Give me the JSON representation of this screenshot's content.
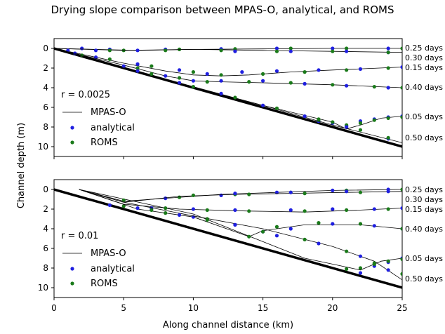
{
  "figure": {
    "title": "Drying slope comparison between MPAS-O, analytical, and ROMS",
    "xlabel": "Along channel distance (km)",
    "ylabel": "Channel depth (m)"
  },
  "legend": {
    "mpas": "MPAS-O",
    "analytical": "analytical",
    "roms": "ROMS"
  },
  "colors": {
    "analytical": "#1f1fe0",
    "roms": "#1a7a1a",
    "mpas": "#000000"
  },
  "chart_data": [
    {
      "type": "line",
      "panel": "top",
      "label": "r = 0.0025",
      "xlim": [
        0,
        25
      ],
      "ylim": [
        11,
        -1
      ],
      "yinvert": true,
      "xticks": [
        0,
        5,
        10,
        15,
        20,
        25
      ],
      "yticks": [
        0,
        2,
        4,
        6,
        8,
        10
      ],
      "bathymetry": [
        [
          0,
          0
        ],
        [
          25,
          10
        ]
      ],
      "series": [
        {
          "name": "0.05 days",
          "mpas": [
            [
              0,
              0
            ],
            [
              10,
              4
            ],
            [
              15,
              5.8
            ],
            [
              20,
              7.5
            ],
            [
              21,
              8.2
            ],
            [
              22,
              7.8
            ],
            [
              23.5,
              7.1
            ],
            [
              25,
              6.9
            ]
          ],
          "analytical": [
            [
              19,
              7.4
            ],
            [
              20,
              7.6
            ],
            [
              21,
              7.9
            ],
            [
              22,
              7.4
            ],
            [
              23,
              7.2
            ],
            [
              24,
              7.0
            ],
            [
              25,
              6.9
            ]
          ],
          "roms": [
            [
              19,
              7.3
            ],
            [
              20,
              7.5
            ],
            [
              21,
              7.8
            ],
            [
              22,
              7.6
            ],
            [
              23,
              7.3
            ],
            [
              24,
              7.1
            ],
            [
              25,
              7.0
            ]
          ]
        },
        {
          "name": "0.15 days",
          "mpas": [
            [
              0,
              0
            ],
            [
              2,
              0.6
            ],
            [
              5,
              1.5
            ],
            [
              8,
              2.3
            ],
            [
              10,
              2.7
            ],
            [
              12,
              2.8
            ],
            [
              14,
              2.7
            ],
            [
              17,
              2.4
            ],
            [
              20,
              2.2
            ],
            [
              25,
              1.9
            ]
          ],
          "analytical": [
            [
              1.5,
              0.5
            ],
            [
              3,
              0.9
            ],
            [
              6,
              1.6
            ],
            [
              9,
              2.2
            ],
            [
              11,
              2.6
            ],
            [
              13.5,
              2.4
            ],
            [
              16,
              2.3
            ],
            [
              19,
              2.2
            ],
            [
              22,
              2.1
            ],
            [
              25,
              1.9
            ]
          ],
          "roms": [
            [
              2,
              0.7
            ],
            [
              4,
              1.1
            ],
            [
              7,
              1.8
            ],
            [
              10,
              2.4
            ],
            [
              12,
              2.7
            ],
            [
              15,
              2.6
            ],
            [
              18,
              2.4
            ],
            [
              21,
              2.2
            ],
            [
              24,
              2.0
            ]
          ]
        },
        {
          "name": "0.25 days",
          "mpas": [
            [
              0,
              0
            ],
            [
              5,
              0.2
            ],
            [
              10,
              0.1
            ],
            [
              15,
              0.05
            ],
            [
              20,
              0
            ],
            [
              25,
              0
            ]
          ],
          "analytical": [
            [
              2,
              0
            ],
            [
              4,
              0.1
            ],
            [
              8,
              0.1
            ],
            [
              12,
              0.05
            ],
            [
              16,
              0
            ],
            [
              20,
              0
            ],
            [
              24,
              0
            ]
          ],
          "roms": [
            [
              5,
              0.2
            ],
            [
              9,
              0.1
            ],
            [
              13,
              0.05
            ],
            [
              17,
              0
            ],
            [
              21,
              0
            ],
            [
              25,
              0
            ]
          ]
        },
        {
          "name": "0.30 days",
          "mpas": [
            [
              0,
              0
            ],
            [
              3,
              0.1
            ],
            [
              6,
              0.2
            ],
            [
              10,
              0.1
            ],
            [
              15,
              0.2
            ],
            [
              20,
              0.3
            ],
            [
              25,
              0.4
            ]
          ],
          "analytical": [
            [
              1,
              0.2
            ],
            [
              3,
              0.2
            ],
            [
              6,
              0.2
            ],
            [
              13,
              0.3
            ],
            [
              17,
              0.3
            ],
            [
              21,
              0.3
            ],
            [
              24,
              0.4
            ]
          ],
          "roms": [
            [
              4,
              0.2
            ],
            [
              8,
              0.2
            ],
            [
              12,
              0.2
            ],
            [
              16,
              0.3
            ],
            [
              20,
              0.3
            ],
            [
              24,
              0.4
            ]
          ]
        },
        {
          "name": "0.40 days",
          "mpas": [
            [
              0,
              0
            ],
            [
              5,
              1.7
            ],
            [
              8,
              2.8
            ],
            [
              10,
              3.3
            ],
            [
              12,
              3.4
            ],
            [
              15,
              3.5
            ],
            [
              20,
              3.7
            ],
            [
              25,
              4.0
            ]
          ],
          "analytical": [
            [
              5,
              1.8
            ],
            [
              8,
              2.8
            ],
            [
              10,
              3.3
            ],
            [
              12,
              3.3
            ],
            [
              15,
              3.3
            ],
            [
              18,
              3.6
            ],
            [
              21,
              3.8
            ],
            [
              24,
              4.0
            ]
          ],
          "roms": [
            [
              6,
              2.0
            ],
            [
              9,
              3.0
            ],
            [
              11,
              3.4
            ],
            [
              14,
              3.4
            ],
            [
              17,
              3.5
            ],
            [
              20,
              3.7
            ],
            [
              23,
              3.9
            ],
            [
              25,
              4.0
            ]
          ]
        },
        {
          "name": "0.50 days",
          "mpas": [
            [
              0,
              0
            ],
            [
              5,
              2.0
            ],
            [
              10,
              3.9
            ],
            [
              15,
              5.8
            ],
            [
              20,
              7.8
            ],
            [
              25,
              9.6
            ]
          ],
          "analytical": [
            [
              6,
              2.3
            ],
            [
              9,
              3.5
            ],
            [
              12,
              4.6
            ],
            [
              15,
              5.8
            ],
            [
              18,
              6.9
            ],
            [
              21,
              8.0
            ],
            [
              24,
              9.2
            ]
          ],
          "roms": [
            [
              7,
              2.6
            ],
            [
              10,
              3.9
            ],
            [
              13,
              5.0
            ],
            [
              16,
              6.1
            ],
            [
              19,
              7.2
            ],
            [
              22,
              8.3
            ],
            [
              24,
              9.1
            ]
          ]
        }
      ]
    },
    {
      "type": "line",
      "panel": "bottom",
      "label": "r = 0.01",
      "xlim": [
        0,
        25
      ],
      "ylim": [
        11,
        -1
      ],
      "yinvert": true,
      "xticks": [
        0,
        5,
        10,
        15,
        20,
        25
      ],
      "yticks": [
        0,
        2,
        4,
        6,
        8,
        10
      ],
      "bathymetry": [
        [
          0,
          0
        ],
        [
          25,
          10
        ]
      ],
      "series": [
        {
          "name": "0.05 days",
          "mpas": [
            [
              1.8,
              0
            ],
            [
              10,
              2.5
            ],
            [
              18,
              7.0
            ],
            [
              22,
              8.2
            ],
            [
              23.5,
              7.3
            ],
            [
              25,
              7.0
            ]
          ],
          "analytical": [
            [
              22,
              8.5
            ],
            [
              23,
              7.8
            ],
            [
              24,
              7.4
            ],
            [
              25,
              7.0
            ]
          ],
          "roms": [
            [
              21,
              8.1
            ],
            [
              22,
              8.0
            ],
            [
              23,
              7.6
            ],
            [
              24,
              7.3
            ],
            [
              25,
              7.1
            ]
          ]
        },
        {
          "name": "0.15 days",
          "mpas": [
            [
              1.8,
              0
            ],
            [
              5,
              1.5
            ],
            [
              9,
              2.0
            ],
            [
              14,
              2.2
            ],
            [
              18,
              2.3
            ],
            [
              22,
              2.1
            ],
            [
              25,
              1.9
            ]
          ],
          "analytical": [
            [
              4,
              1.6
            ],
            [
              7,
              1.9
            ],
            [
              10,
              2.0
            ],
            [
              13,
              2.1
            ],
            [
              17,
              2.1
            ],
            [
              20,
              2.0
            ],
            [
              23,
              2.0
            ],
            [
              25,
              1.9
            ]
          ],
          "roms": [
            [
              5,
              1.7
            ],
            [
              8,
              1.9
            ],
            [
              11,
              2.1
            ],
            [
              14,
              2.2
            ],
            [
              18,
              2.2
            ],
            [
              21,
              2.1
            ],
            [
              24,
              2.0
            ]
          ]
        },
        {
          "name": "0.25 days",
          "mpas": [
            [
              1.8,
              0
            ],
            [
              5,
              1.2
            ],
            [
              8,
              0.9
            ],
            [
              12,
              0.5
            ],
            [
              16,
              0.3
            ],
            [
              20,
              0.1
            ],
            [
              25,
              0
            ]
          ],
          "analytical": [
            [
              8,
              0.9
            ],
            [
              12,
              0.6
            ],
            [
              16,
              0.3
            ],
            [
              20,
              0.1
            ],
            [
              24,
              0
            ]
          ],
          "roms": [
            [
              5,
              1.1
            ],
            [
              9,
              0.8
            ],
            [
              13,
              0.5
            ],
            [
              17,
              0.3
            ],
            [
              21,
              0.1
            ],
            [
              25,
              0
            ]
          ]
        },
        {
          "name": "0.30 days",
          "mpas": [
            [
              1.8,
              0
            ],
            [
              5,
              1.3
            ],
            [
              9,
              0.7
            ],
            [
              13,
              0.5
            ],
            [
              17,
              0.4
            ],
            [
              21,
              0.3
            ],
            [
              25,
              0.2
            ]
          ],
          "analytical": [
            [
              13,
              0.4
            ],
            [
              17,
              0.3
            ],
            [
              21,
              0.2
            ],
            [
              24,
              0.2
            ]
          ],
          "roms": [
            [
              10,
              0.6
            ],
            [
              14,
              0.5
            ],
            [
              18,
              0.4
            ],
            [
              22,
              0.3
            ]
          ]
        },
        {
          "name": "0.40 days",
          "mpas": [
            [
              1.8,
              0
            ],
            [
              6,
              2.0
            ],
            [
              10,
              2.8
            ],
            [
              14,
              4.8
            ],
            [
              15,
              4.2
            ],
            [
              18,
              3.6
            ],
            [
              22,
              3.6
            ],
            [
              25,
              4.0
            ]
          ],
          "analytical": [
            [
              6,
              1.9
            ],
            [
              10,
              2.8
            ],
            [
              13,
              3.6
            ],
            [
              15,
              4.3
            ],
            [
              17,
              4.0
            ],
            [
              20,
              3.5
            ],
            [
              23,
              3.7
            ],
            [
              25,
              4.0
            ]
          ],
          "roms": [
            [
              7,
              2.1
            ],
            [
              11,
              3.0
            ],
            [
              14,
              4.8
            ],
            [
              16,
              3.8
            ],
            [
              19,
              3.4
            ],
            [
              22,
              3.5
            ],
            [
              25,
              4.0
            ]
          ]
        },
        {
          "name": "0.50 days",
          "mpas": [
            [
              1.8,
              0
            ],
            [
              5,
              1.3
            ],
            [
              10,
              2.7
            ],
            [
              15,
              4.0
            ],
            [
              20,
              5.8
            ],
            [
              23,
              7.3
            ],
            [
              25,
              9.2
            ]
          ],
          "analytical": [
            [
              9,
              2.6
            ],
            [
              13,
              3.6
            ],
            [
              16,
              4.7
            ],
            [
              19,
              5.5
            ],
            [
              22,
              6.8
            ],
            [
              24,
              8.2
            ]
          ],
          "roms": [
            [
              8,
              2.4
            ],
            [
              11,
              3.1
            ],
            [
              15,
              4.3
            ],
            [
              18,
              5.1
            ],
            [
              21,
              6.3
            ],
            [
              23,
              7.5
            ],
            [
              25,
              8.6
            ]
          ]
        }
      ]
    }
  ]
}
